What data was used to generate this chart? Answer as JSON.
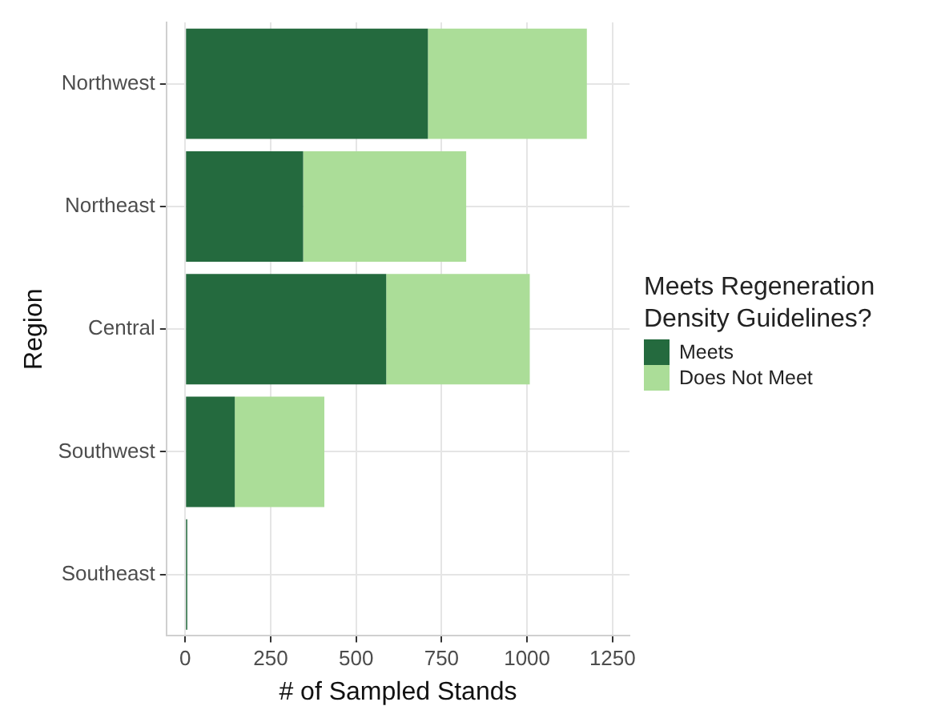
{
  "chart_data": {
    "type": "bar",
    "orientation": "horizontal",
    "stacked": true,
    "xlabel": "# of Sampled Stands",
    "ylabel": "Region",
    "legend_title": "Meets Regeneration Density Guidelines?",
    "categories": [
      "Northwest",
      "Northeast",
      "Central",
      "Southwest",
      "Southeast"
    ],
    "series": [
      {
        "name": "Meets",
        "color": "#246a3e",
        "values": [
          710,
          345,
          588,
          145,
          6
        ]
      },
      {
        "name": "Does Not Meet",
        "color": "#abdd98",
        "values": [
          465,
          477,
          420,
          262,
          0
        ]
      }
    ],
    "xlim": [
      -55,
      1300
    ],
    "xticks": [
      0,
      250,
      500,
      750,
      1000,
      1250
    ],
    "grid": true,
    "legend": "right"
  }
}
